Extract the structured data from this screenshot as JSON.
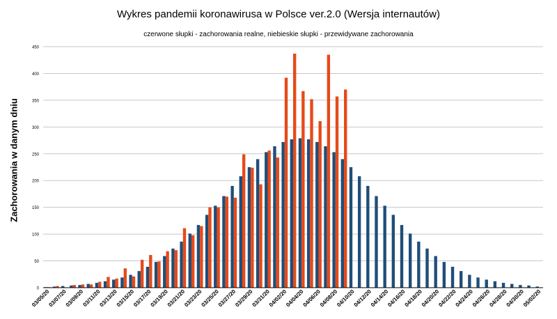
{
  "chart_data": {
    "type": "bar",
    "title": "Wykres pandemii koronawirusa w Polsce ver.2.0 (Wersja internautów)",
    "subtitle": "czerwone słupki - zachorowania realne, niebieskie słupki - przewidywane zachorowania",
    "ylabel": "Zachorowania w danym dniu",
    "xlabel": "",
    "ylim": [
      0,
      450
    ],
    "yticks": [
      0,
      50,
      100,
      150,
      200,
      250,
      300,
      350,
      400,
      450
    ],
    "grid": true,
    "categories": [
      "03/05/20",
      "03/06/20",
      "03/07/20",
      "03/08/20",
      "03/09/20",
      "03/10/20",
      "03/11/20",
      "03/12/20",
      "03/13/20",
      "03/14/20",
      "03/15/20",
      "03/16/20",
      "03/17/20",
      "03/18/20",
      "03/19/20",
      "03/20/20",
      "03/21/20",
      "03/22/20",
      "03/23/20",
      "03/24/20",
      "03/25/20",
      "03/26/20",
      "03/27/20",
      "03/28/20",
      "03/29/20",
      "03/30/20",
      "03/31/20",
      "04/01/20",
      "04/02/20",
      "04/03/20",
      "04/04/20",
      "04/05/20",
      "04/06/20",
      "04/07/20",
      "04/08/20",
      "04/09/20",
      "04/10/20",
      "04/11/20",
      "04/12/20",
      "04/13/20",
      "04/14/20",
      "04/15/20",
      "04/16/20",
      "04/17/20",
      "04/18/20",
      "04/19/20",
      "04/20/20",
      "04/21/20",
      "04/22/20",
      "04/23/20",
      "04/24/20",
      "04/25/20",
      "04/26/20",
      "04/27/20",
      "04/28/20",
      "04/29/20",
      "04/30/20",
      "05/01/20",
      "05/02/20"
    ],
    "tick_labels": [
      "03/05/20",
      "03/07/20",
      "03/09/20",
      "03/11/20",
      "03/13/20",
      "03/15/20",
      "03/17/20",
      "03/19/20",
      "03/21/20",
      "03/23/20",
      "03/25/20",
      "03/27/20",
      "03/29/20",
      "03/31/20",
      "04/02/20",
      "04/04/20",
      "04/06/20",
      "04/08/20",
      "04/10/20",
      "04/12/20",
      "04/14/20",
      "04/16/20",
      "04/18/20",
      "04/20/20",
      "04/22/20",
      "04/24/20",
      "04/26/20",
      "04/28/20",
      "04/30/20",
      "05/02/20"
    ],
    "series": [
      {
        "name": "przewidywane zachorowania",
        "color": "#1f4e79",
        "values": [
          1,
          2,
          3,
          4,
          5,
          7,
          9,
          12,
          15,
          19,
          24,
          31,
          39,
          48,
          59,
          73,
          86,
          101,
          117,
          136,
          153,
          171,
          190,
          208,
          225,
          240,
          253,
          264,
          272,
          277,
          279,
          277,
          272,
          264,
          253,
          240,
          225,
          208,
          190,
          171,
          153,
          136,
          117,
          101,
          86,
          73,
          59,
          48,
          39,
          31,
          24,
          19,
          15,
          12,
          9,
          7,
          5,
          4,
          2
        ]
      },
      {
        "name": "zachorowania realne",
        "color": "#e64a19",
        "values": [
          1,
          3,
          null,
          5,
          6,
          6,
          11,
          20,
          17,
          36,
          21,
          52,
          61,
          49,
          68,
          70,
          111,
          98,
          115,
          150,
          150,
          170,
          168,
          249,
          224,
          193,
          256,
          243,
          392,
          437,
          367,
          352,
          311,
          435,
          357,
          370,
          null,
          null,
          null,
          null,
          null,
          null,
          null,
          null,
          null,
          null,
          null,
          null,
          null,
          null,
          null,
          null,
          null,
          null,
          null,
          null,
          null,
          null,
          null
        ]
      }
    ]
  }
}
